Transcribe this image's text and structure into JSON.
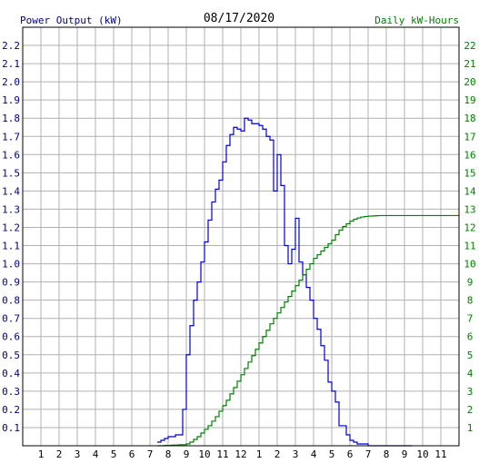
{
  "chart_data": {
    "type": "line",
    "title": "08/17/2020",
    "left_axis_label": "Power Output (kW)",
    "right_axis_label": "Daily kW-Hours",
    "x_ticks": [
      "1",
      "2",
      "3",
      "4",
      "5",
      "6",
      "7",
      "8",
      "9",
      "10",
      "11",
      "12",
      "1",
      "2",
      "3",
      "4",
      "5",
      "6",
      "7",
      "8",
      "9",
      "10",
      "11"
    ],
    "x_range_hours": [
      0,
      24
    ],
    "left_ticks": [
      "0.1",
      "0.2",
      "0.3",
      "0.4",
      "0.5",
      "0.6",
      "0.7",
      "0.8",
      "0.9",
      "1.0",
      "1.1",
      "1.2",
      "1.3",
      "1.4",
      "1.5",
      "1.6",
      "1.7",
      "1.8",
      "1.9",
      "2.0",
      "2.1",
      "2.2"
    ],
    "left_range": [
      0,
      2.3
    ],
    "right_ticks": [
      "1",
      "2",
      "3",
      "4",
      "5",
      "6",
      "7",
      "8",
      "9",
      "10",
      "11",
      "12",
      "13",
      "14",
      "15",
      "16",
      "17",
      "18",
      "19",
      "20",
      "21",
      "22"
    ],
    "right_range": [
      0,
      23
    ],
    "grid": true,
    "colors": {
      "power": "#0000cc",
      "energy": "#008000",
      "left_axis_text": "#000080",
      "right_axis_text": "#008000",
      "grid": "#b0b0b0"
    },
    "series": [
      {
        "axis": "left",
        "x": [
          7.4,
          7.6,
          7.8,
          8.0,
          8.2,
          8.4,
          8.6,
          8.8,
          9.0,
          9.2,
          9.4,
          9.6,
          9.8,
          10.0,
          10.2,
          10.4,
          10.6,
          10.8,
          11.0,
          11.2,
          11.4,
          11.6,
          11.8,
          12.0,
          12.2,
          12.4,
          12.6,
          12.8,
          13.0,
          13.2,
          13.4,
          13.6,
          13.8,
          14.0,
          14.2,
          14.4,
          14.6,
          14.8,
          15.0,
          15.2,
          15.4,
          15.6,
          15.8,
          16.0,
          16.2,
          16.4,
          16.6,
          16.8,
          17.0,
          17.2,
          17.4,
          17.6,
          17.8,
          18.0,
          18.2,
          18.4,
          18.6,
          18.8,
          19.0,
          19.2,
          19.4,
          19.6,
          19.8,
          20.0,
          20.2,
          20.4,
          20.6,
          20.8,
          21.0,
          21.2,
          21.4
        ],
        "values": [
          0.02,
          0.03,
          0.04,
          0.05,
          0.05,
          0.06,
          0.06,
          0.2,
          0.5,
          0.66,
          0.8,
          0.9,
          1.01,
          1.12,
          1.24,
          1.34,
          1.41,
          1.46,
          1.56,
          1.65,
          1.71,
          1.75,
          1.74,
          1.73,
          1.8,
          1.79,
          1.77,
          1.77,
          1.76,
          1.74,
          1.7,
          1.68,
          1.4,
          1.6,
          1.43,
          1.1,
          1.0,
          1.08,
          1.25,
          1.01,
          0.94,
          0.87,
          0.8,
          0.7,
          0.64,
          0.55,
          0.47,
          0.35,
          0.3,
          0.24,
          0.11,
          0.11,
          0.06,
          0.03,
          0.02,
          0.01,
          0.01,
          0.01,
          0,
          0,
          0,
          0,
          0,
          0,
          0,
          0,
          0,
          0,
          0,
          0,
          0
        ]
      },
      {
        "axis": "right",
        "x": [
          7.4,
          7.8,
          8.2,
          8.6,
          9.0,
          9.2,
          9.4,
          9.6,
          9.8,
          10.0,
          10.2,
          10.4,
          10.6,
          10.8,
          11.0,
          11.2,
          11.4,
          11.6,
          11.8,
          12.0,
          12.2,
          12.4,
          12.6,
          12.8,
          13.0,
          13.2,
          13.4,
          13.6,
          13.8,
          14.0,
          14.2,
          14.4,
          14.6,
          14.8,
          15.0,
          15.2,
          15.4,
          15.6,
          15.8,
          16.0,
          16.2,
          16.4,
          16.6,
          16.8,
          17.0,
          17.2,
          17.4,
          17.6,
          17.8,
          18.0,
          18.2,
          18.4,
          18.6,
          18.8,
          19.0,
          19.2,
          19.4,
          19.6,
          20.0,
          21.0,
          22.0,
          23.0,
          24.0
        ],
        "values": [
          0,
          0.02,
          0.04,
          0.06,
          0.1,
          0.2,
          0.35,
          0.5,
          0.7,
          0.9,
          1.1,
          1.35,
          1.6,
          1.9,
          2.2,
          2.5,
          2.85,
          3.2,
          3.55,
          3.9,
          4.25,
          4.6,
          4.95,
          5.3,
          5.65,
          6.0,
          6.35,
          6.7,
          7.0,
          7.3,
          7.6,
          7.9,
          8.2,
          8.5,
          8.8,
          9.1,
          9.4,
          9.7,
          10.0,
          10.3,
          10.5,
          10.7,
          10.9,
          11.1,
          11.3,
          11.6,
          11.85,
          12.05,
          12.2,
          12.35,
          12.45,
          12.52,
          12.57,
          12.6,
          12.62,
          12.63,
          12.64,
          12.65,
          12.65,
          12.65,
          12.65,
          12.65,
          12.65
        ]
      }
    ]
  }
}
